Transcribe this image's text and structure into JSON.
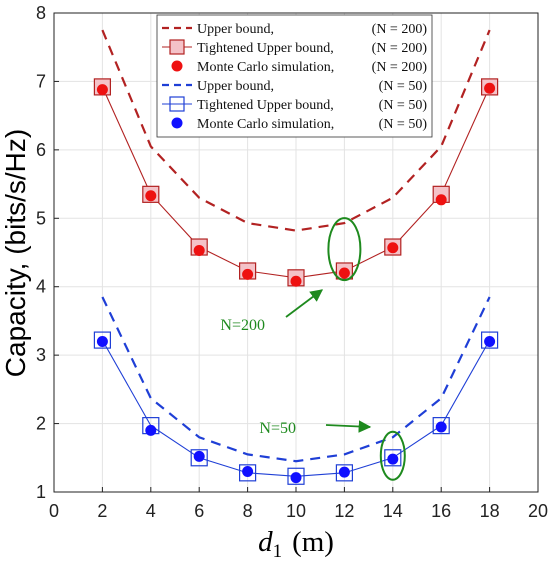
{
  "chart_data": {
    "type": "line",
    "xlabel_main": "d",
    "xlabel_sub": "1",
    "xlabel_unit": "(m)",
    "ylabel": "Capacity, (bits/s/Hz)",
    "xlim": [
      0,
      20
    ],
    "ylim": [
      1,
      8
    ],
    "xticks": [
      "0",
      "2",
      "4",
      "6",
      "8",
      "10",
      "12",
      "14",
      "16",
      "18",
      "20"
    ],
    "yticks": [
      "1",
      "2",
      "3",
      "4",
      "5",
      "6",
      "7",
      "8"
    ],
    "grid": true,
    "legend_position": "top-center",
    "colors": {
      "n200": "#b22222",
      "n200_markers": "#ee1111",
      "n200_fill": "#f4c2c8",
      "n50": "#1f3fd6",
      "n50_markers": "#1010ff",
      "annotation": "#1e8a1e"
    },
    "x": [
      2,
      4,
      6,
      8,
      10,
      12,
      14,
      16,
      18
    ],
    "series": [
      {
        "name": "Upper bound,",
        "label_n": "(N = 200)",
        "style": "dashed",
        "values": [
          7.75,
          6.05,
          5.3,
          4.93,
          4.82,
          4.93,
          5.3,
          6.05,
          7.75
        ]
      },
      {
        "name": "Tightened Upper bound,",
        "label_n": "(N = 200)",
        "style": "line-square",
        "values": [
          6.92,
          5.35,
          4.58,
          4.23,
          4.13,
          4.23,
          4.58,
          5.35,
          6.92
        ]
      },
      {
        "name": "Monte Carlo simulation,",
        "label_n": "(N = 200)",
        "style": "dot",
        "values": [
          6.88,
          5.33,
          4.53,
          4.18,
          4.08,
          4.2,
          4.57,
          5.27,
          6.9
        ]
      },
      {
        "name": "Upper bound,",
        "label_n": "(N = 50)",
        "style": "dashed",
        "values": [
          3.85,
          2.37,
          1.8,
          1.55,
          1.45,
          1.55,
          1.8,
          2.37,
          3.85
        ]
      },
      {
        "name": "Tightened Upper bound,",
        "label_n": "(N = 50)",
        "style": "line-square",
        "values": [
          3.22,
          1.97,
          1.5,
          1.28,
          1.23,
          1.28,
          1.5,
          1.97,
          3.22
        ]
      },
      {
        "name": "Monte Carlo simulation,",
        "label_n": "(N = 50)",
        "style": "dot",
        "values": [
          3.2,
          1.9,
          1.52,
          1.3,
          1.21,
          1.29,
          1.48,
          1.95,
          3.2
        ]
      }
    ],
    "annotations": [
      {
        "text": "N=200",
        "ellipse_center": [
          12,
          4.55
        ],
        "target": [
          12,
          4.55
        ]
      },
      {
        "text": "N=50",
        "ellipse_center": [
          14,
          1.53
        ],
        "target": [
          14,
          1.53
        ]
      }
    ]
  }
}
